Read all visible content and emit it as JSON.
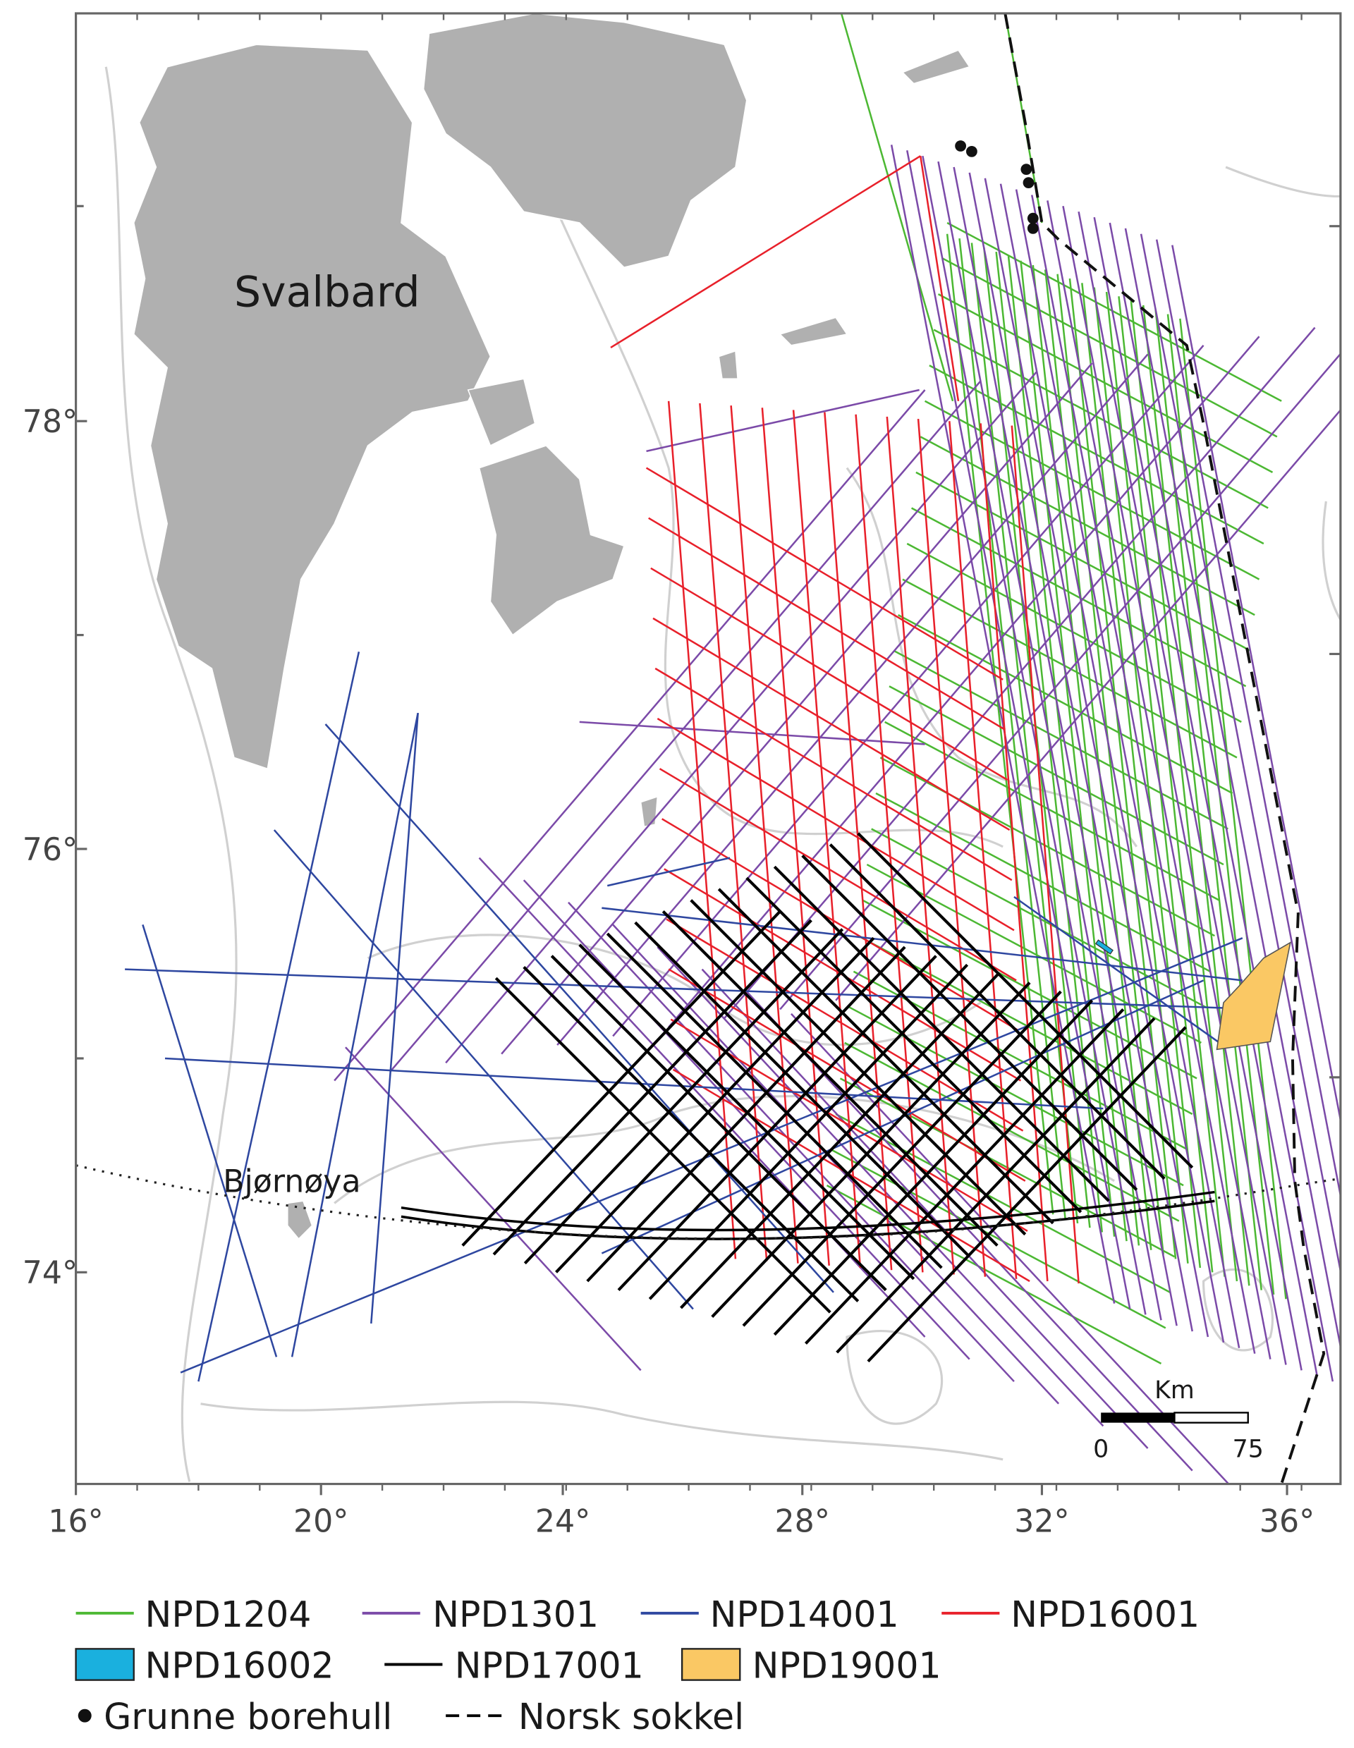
{
  "map": {
    "labels": {
      "svalbard": "Svalbard",
      "bjornoya": "Bjørnøya"
    },
    "lat_labels": [
      "78°",
      "76°",
      "74°"
    ],
    "lon_labels": [
      "16°",
      "20°",
      "24°",
      "28°",
      "32°",
      "36°"
    ],
    "scale": {
      "unit": "Km",
      "start": "0",
      "end": "75"
    }
  },
  "legend": [
    "NPD1204",
    "NPD1301",
    "NPD14001",
    "NPD16001",
    "NPD16002",
    "NPD17001",
    "NPD19001",
    "Grunne borehull",
    "Norsk sokkel"
  ]
}
